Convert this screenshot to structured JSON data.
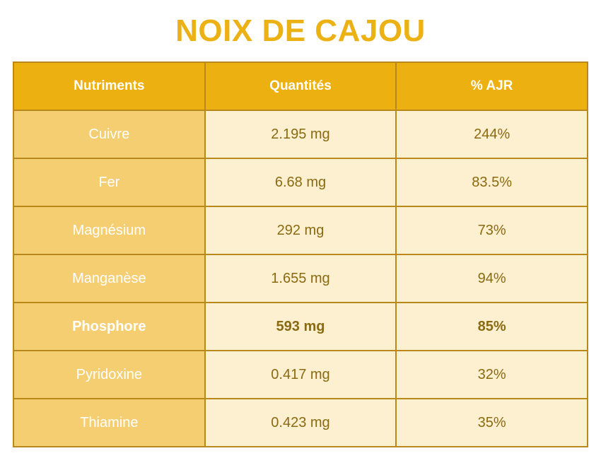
{
  "title": "NOIX DE CAJOU",
  "table": {
    "headers": [
      "Nutriments",
      "Quantités",
      "% AJR"
    ],
    "rows": [
      {
        "name": "Cuivre",
        "quantity": "2.195 mg",
        "ajr": "244%",
        "bold": false
      },
      {
        "name": "Fer",
        "quantity": "6.68 mg",
        "ajr": "83.5%",
        "bold": false
      },
      {
        "name": "Magnésium",
        "quantity": "292 mg",
        "ajr": "73%",
        "bold": false
      },
      {
        "name": "Manganèse",
        "quantity": "1.655 mg",
        "ajr": "94%",
        "bold": false
      },
      {
        "name": "Phosphore",
        "quantity": "593 mg",
        "ajr": "85%",
        "bold": true
      },
      {
        "name": "Pyridoxine",
        "quantity": "0.417 mg",
        "ajr": "32%",
        "bold": false
      },
      {
        "name": "Thiamine",
        "quantity": "0.423 mg",
        "ajr": "35%",
        "bold": false
      }
    ]
  },
  "colors": {
    "title": "#ecb215",
    "header_bg": "#ecb010",
    "name_col_bg": "#f5ce72",
    "value_col_bg": "#fdf0d0",
    "border": "#b8891a",
    "value_text": "#8a6a10"
  }
}
